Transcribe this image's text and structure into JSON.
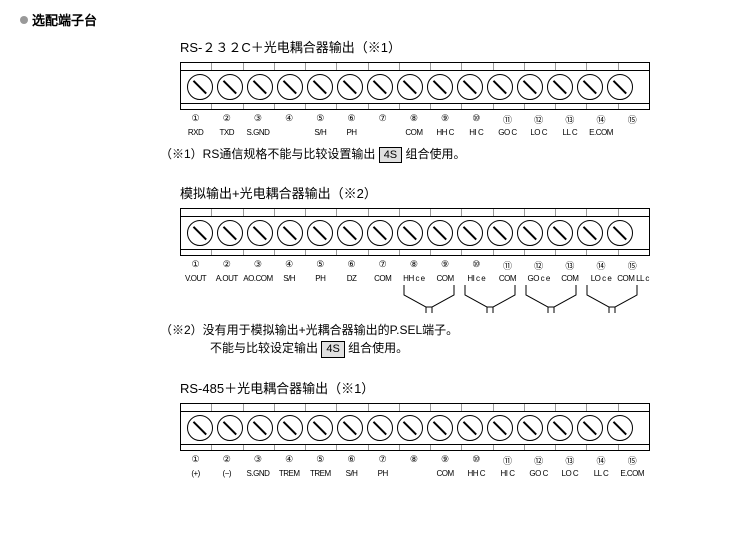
{
  "page_title": "选配端子台",
  "terminal_count": 15,
  "colors": {
    "stroke": "#000000",
    "bg": "#ffffff",
    "tag_bg": "#e0e0e0",
    "bullet": "#999999"
  },
  "circled_nums": [
    "①",
    "②",
    "③",
    "④",
    "⑤",
    "⑥",
    "⑦",
    "⑧",
    "⑨",
    "⑩",
    "⑪",
    "⑫",
    "⑬",
    "⑭",
    "⑮"
  ],
  "sections": [
    {
      "title": "RS-２３２C＋光电耦合器输出（※1）",
      "labels": [
        "RXD",
        "TXD",
        "S.GND",
        "",
        "S/H",
        "PH",
        "",
        "COM",
        "HH C",
        "HI C",
        "GO C",
        "LO C",
        "LL C",
        "E.COM",
        ""
      ],
      "note_html": "（※1）RS通信规格不能与比较设置输出 <span class='tag'>4S</span> 组合使用。",
      "has_connectors": false
    },
    {
      "title": "模拟输出+光电耦合器输出（※2）",
      "labels": [
        "V.OUT",
        "A.OUT",
        "AO.COM",
        "S/H",
        "PH",
        "DZ",
        "COM",
        "HH c e",
        "COM",
        "HI c e",
        "COM",
        "GO c e",
        "COM",
        "LO c e",
        "COM LL c"
      ],
      "note_html": "（※2）没有用于模拟输出+光耦合器输出的P.SEL端子。<br><span class='note-line2'>不能与比较设定输出 <span class='tag'>4S</span> 组合使用。</span>",
      "has_connectors": true,
      "connector_start": 8
    },
    {
      "title": "RS-485＋光电耦合器输出（※1）",
      "labels": [
        "(+)",
        "(−)",
        "S.GND",
        "TREM",
        "TREM",
        "S/H",
        "PH",
        "",
        "COM",
        "HH C",
        "HI C",
        "GO C",
        "LO C",
        "LL C",
        "E.COM"
      ],
      "note_html": "",
      "has_connectors": false
    }
  ]
}
